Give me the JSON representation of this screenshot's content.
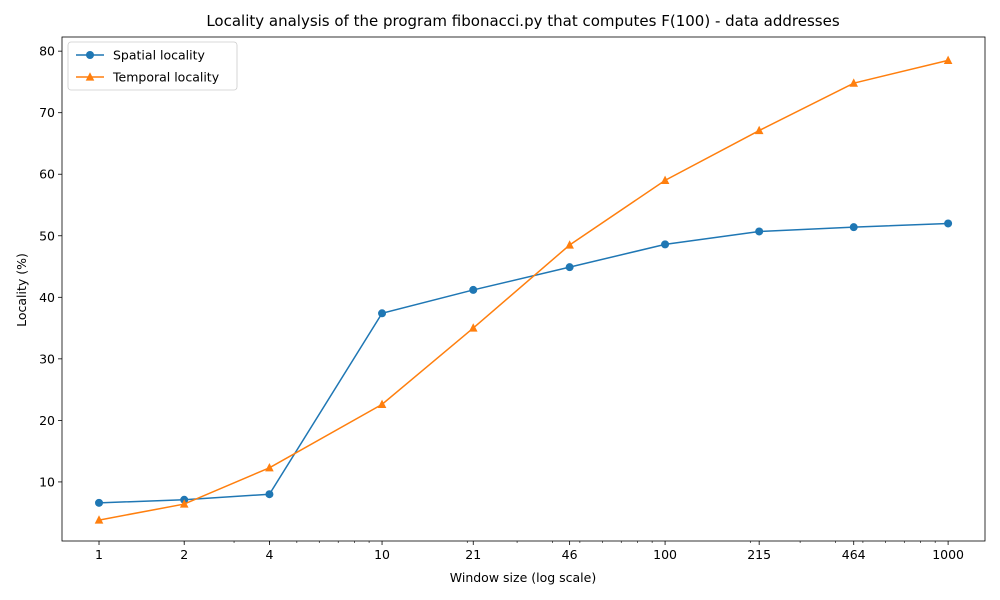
{
  "chart_data": {
    "type": "line",
    "title": "Locality analysis of the program fibonacci.py that computes F(100) - data addresses",
    "xlabel": "Window size (log scale)",
    "ylabel": "Locality (%)",
    "xscale": "log",
    "x": [
      1,
      2,
      4,
      10,
      21,
      46,
      100,
      215,
      464,
      1000
    ],
    "x_tick_labels": [
      "1",
      "2",
      "4",
      "10",
      "21",
      "46",
      "100",
      "215",
      "464",
      "1000"
    ],
    "xlim": [
      0.74,
      1350
    ],
    "ylim": [
      0.4,
      82.3
    ],
    "y_ticks": [
      10,
      20,
      30,
      40,
      50,
      60,
      70,
      80
    ],
    "y_tick_labels": [
      "10",
      "20",
      "30",
      "40",
      "50",
      "60",
      "70",
      "80"
    ],
    "grid": false,
    "legend_position": "top-left",
    "series": [
      {
        "name": "Spatial locality",
        "color": "#1f77b4",
        "marker": "circle",
        "values": [
          6.6,
          7.1,
          8.0,
          37.4,
          41.2,
          44.9,
          48.6,
          50.7,
          51.4,
          52.0
        ]
      },
      {
        "name": "Temporal locality",
        "color": "#ff7f0e",
        "marker": "triangle",
        "values": [
          3.8,
          6.4,
          12.3,
          22.6,
          35.0,
          48.5,
          59.0,
          67.1,
          74.8,
          78.5
        ]
      }
    ]
  }
}
